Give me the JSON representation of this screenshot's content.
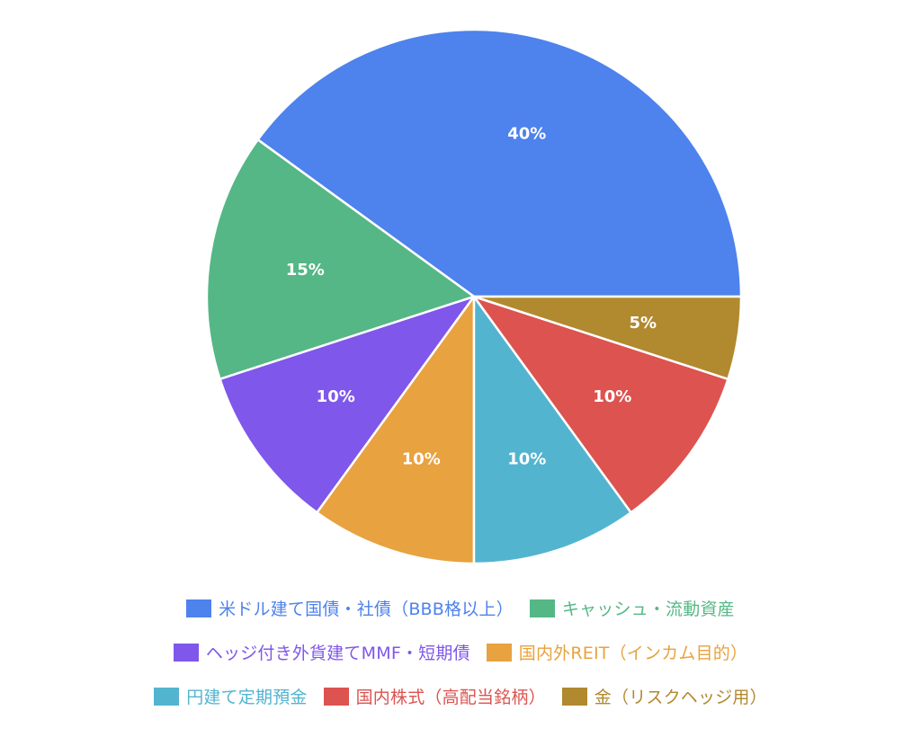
{
  "chart_data": {
    "type": "pie",
    "categories": [
      "米ドル建て国債・社債（BBB格以上）",
      "キャッシュ・流動資産",
      "ヘッジ付き外貨建てMMF・短期債",
      "国内外REIT（インカム目的）",
      "円建て定期預金",
      "国内株式（高配当銘柄）",
      "金（リスクヘッジ用）"
    ],
    "values": [
      40,
      15,
      10,
      10,
      10,
      10,
      5
    ],
    "data_labels": [
      "40%",
      "15%",
      "10%",
      "10%",
      "10%",
      "10%",
      "5%"
    ],
    "colors": [
      "#4E82EC",
      "#55B785",
      "#7F57EA",
      "#E8A23F",
      "#53B4CF",
      "#DC534F",
      "#B1892F"
    ],
    "start_angle_deg": 0,
    "direction": "counterclockwise",
    "legend_position": "bottom",
    "legend_rows": [
      [
        0,
        1
      ],
      [
        2,
        3
      ],
      [
        4,
        5,
        6
      ]
    ]
  }
}
